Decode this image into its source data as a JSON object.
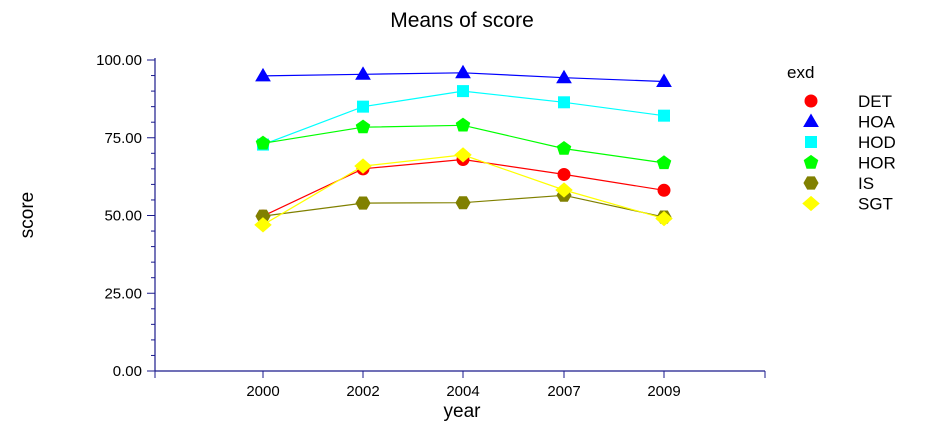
{
  "chart_data": {
    "type": "line",
    "title": "Means of score",
    "xlabel": "year",
    "ylabel": "score",
    "categories": [
      "2000",
      "2002",
      "2004",
      "2007",
      "2009"
    ],
    "ylim": [
      0,
      100
    ],
    "yticks": [
      "0.00",
      "25.00",
      "50.00",
      "75.00",
      "100.00"
    ],
    "grid": false,
    "legend_title": "exd",
    "legend_position": "right",
    "series": [
      {
        "name": "DET",
        "color": "#ff0000",
        "marker": "circle",
        "values": [
          49.8,
          65.0,
          68.0,
          63.2,
          58.1
        ]
      },
      {
        "name": "HOA",
        "color": "#0000ff",
        "marker": "triangle",
        "values": [
          94.9,
          95.4,
          95.9,
          94.3,
          93.1
        ]
      },
      {
        "name": "HOD",
        "color": "#00ffff",
        "marker": "square",
        "values": [
          72.8,
          85.0,
          90.0,
          86.4,
          82.1
        ]
      },
      {
        "name": "HOR",
        "color": "#00ff00",
        "marker": "pentagon",
        "values": [
          73.2,
          78.4,
          79.0,
          71.5,
          66.9
        ]
      },
      {
        "name": "IS",
        "color": "#808000",
        "marker": "hexagon",
        "values": [
          49.8,
          54.0,
          54.1,
          56.5,
          49.5
        ]
      },
      {
        "name": "SGT",
        "color": "#ffff00",
        "marker": "diamond",
        "values": [
          47.0,
          65.9,
          69.5,
          58.2,
          49.0
        ]
      }
    ]
  }
}
